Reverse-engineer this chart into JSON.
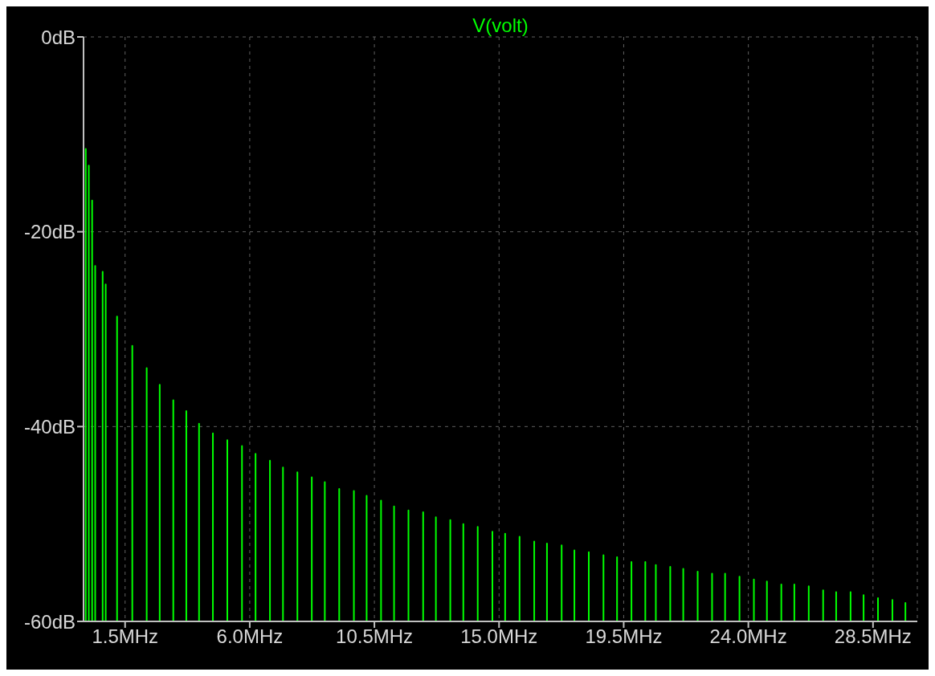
{
  "chart_data": {
    "type": "line",
    "xlim": [
      0,
      30.1
    ],
    "xticks": [
      {
        "value": 1.5,
        "label": "1.5MHz"
      },
      {
        "value": 6.0,
        "label": "6.0MHz"
      },
      {
        "value": 10.5,
        "label": "10.5MHz"
      },
      {
        "value": 15.0,
        "label": "15.0MHz"
      },
      {
        "value": 19.5,
        "label": "19.5MHz"
      },
      {
        "value": 24.0,
        "label": "24.0MHz"
      },
      {
        "value": 28.5,
        "label": "28.5MHz"
      }
    ],
    "ylim": [
      -60,
      0
    ],
    "yticks": [
      {
        "value": 0,
        "label": "0dB"
      },
      {
        "value": -20,
        "label": "-20dB"
      },
      {
        "value": -40,
        "label": "-40dB"
      },
      {
        "value": -60,
        "label": "-60dB"
      }
    ],
    "grid": true,
    "legend": "top",
    "marker": "none",
    "line_style": "solid",
    "series": [
      {
        "name": "V(volt)",
        "color": "#00ff00",
        "x": [
          0.08,
          0.08,
          0.08,
          0.19,
          0.19,
          0.19,
          0.31,
          0.31,
          0.31,
          0.42,
          0.42,
          0.42,
          0.69,
          0.69,
          0.69,
          0.8,
          0.8,
          0.8,
          1.21,
          1.21,
          1.21,
          1.76,
          1.76,
          1.76,
          2.28,
          2.28,
          2.28,
          2.75,
          2.75,
          2.75,
          3.24,
          3.24,
          3.24,
          3.71,
          3.71,
          3.71,
          4.17,
          4.17,
          4.17,
          4.67,
          4.67,
          4.67,
          5.19,
          5.19,
          5.19,
          5.72,
          5.72,
          5.72,
          6.21,
          6.21,
          6.21,
          6.73,
          6.73,
          6.73,
          7.2,
          7.2,
          7.2,
          7.72,
          7.72,
          7.72,
          8.24,
          8.24,
          8.24,
          8.71,
          8.71,
          8.71,
          9.23,
          9.23,
          9.23,
          9.76,
          9.76,
          9.76,
          10.22,
          10.22,
          10.22,
          10.74,
          10.74,
          10.74,
          11.21,
          11.21,
          11.21,
          11.73,
          11.73,
          11.73,
          12.26,
          12.26,
          12.26,
          12.72,
          12.72,
          12.72,
          13.24,
          13.24,
          13.24,
          13.71,
          13.71,
          13.71,
          14.23,
          14.23,
          14.23,
          14.76,
          14.76,
          14.76,
          15.22,
          15.22,
          15.22,
          15.74,
          15.74,
          15.74,
          16.27,
          16.27,
          16.27,
          16.73,
          16.73,
          16.73,
          17.26,
          17.26,
          17.26,
          17.72,
          17.72,
          17.72,
          18.24,
          18.24,
          18.24,
          18.77,
          18.77,
          18.77,
          19.26,
          19.26,
          19.26,
          19.78,
          19.78,
          19.78,
          20.28,
          20.28,
          20.28,
          20.66,
          20.66,
          20.66,
          21.18,
          21.18,
          21.18,
          21.65,
          21.65,
          21.65,
          22.17,
          22.17,
          22.17,
          22.69,
          22.69,
          22.69,
          23.16,
          23.16,
          23.16,
          23.68,
          23.68,
          23.68,
          24.2,
          24.2,
          24.2,
          24.67,
          24.67,
          24.67,
          25.19,
          25.19,
          25.19,
          25.66,
          25.66,
          25.66,
          26.18,
          26.18,
          26.18,
          26.7,
          26.7,
          26.7,
          27.17,
          27.17,
          27.17,
          27.69,
          27.69,
          27.69,
          28.16,
          28.16,
          28.16,
          28.68,
          28.68,
          28.68,
          29.2,
          29.2,
          29.2,
          29.67,
          29.67,
          29.67
        ],
        "values": [
          -60,
          -11.5,
          -60,
          -60,
          -13.2,
          -60,
          -60,
          -16.8,
          -60,
          -60,
          -23.5,
          -60,
          -60,
          -24.1,
          -60,
          -60,
          -25.4,
          -60,
          -60,
          -28.7,
          -60,
          -60,
          -31.7,
          -60,
          -60,
          -34.0,
          -60,
          -60,
          -35.7,
          -60,
          -60,
          -37.3,
          -60,
          -60,
          -38.4,
          -60,
          -60,
          -39.7,
          -60,
          -60,
          -40.7,
          -60,
          -60,
          -41.4,
          -60,
          -60,
          -42.0,
          -60,
          -60,
          -42.8,
          -60,
          -60,
          -43.5,
          -60,
          -60,
          -44.2,
          -60,
          -60,
          -44.7,
          -60,
          -60,
          -45.2,
          -60,
          -60,
          -45.7,
          -60,
          -60,
          -46.4,
          -60,
          -60,
          -46.6,
          -60,
          -60,
          -47.1,
          -60,
          -60,
          -47.6,
          -60,
          -60,
          -48.2,
          -60,
          -60,
          -48.6,
          -60,
          -60,
          -48.8,
          -60,
          -60,
          -49.3,
          -60,
          -60,
          -49.6,
          -60,
          -60,
          -50.0,
          -60,
          -60,
          -50.3,
          -60,
          -60,
          -50.8,
          -60,
          -60,
          -51.0,
          -60,
          -60,
          -51.3,
          -60,
          -60,
          -51.8,
          -60,
          -60,
          -52.0,
          -60,
          -60,
          -52.2,
          -60,
          -60,
          -52.7,
          -60,
          -60,
          -52.9,
          -60,
          -60,
          -53.2,
          -60,
          -60,
          -53.4,
          -60,
          -60,
          -53.9,
          -60,
          -60,
          -53.9,
          -60,
          -60,
          -54.2,
          -60,
          -60,
          -54.4,
          -60,
          -60,
          -54.6,
          -60,
          -60,
          -54.9,
          -60,
          -60,
          -55.1,
          -60,
          -60,
          -55.1,
          -60,
          -60,
          -55.4,
          -60,
          -60,
          -55.7,
          -60,
          -60,
          -55.9,
          -60,
          -60,
          -56.2,
          -60,
          -60,
          -56.2,
          -60,
          -60,
          -56.4,
          -60,
          -60,
          -56.8,
          -60,
          -60,
          -57.0,
          -60,
          -60,
          -57.0,
          -60,
          -60,
          -57.3,
          -60,
          -60,
          -57.6,
          -60,
          -60,
          -57.8,
          -60,
          -60,
          -58.1,
          -60
        ]
      }
    ]
  }
}
